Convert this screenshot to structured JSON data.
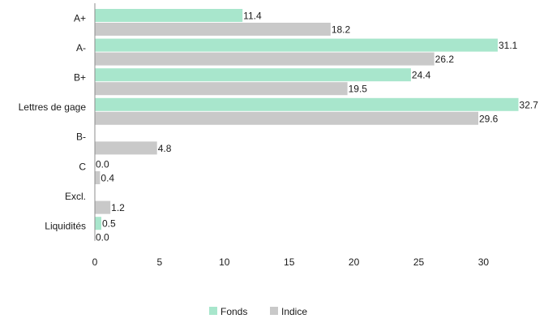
{
  "chart_data": {
    "type": "bar",
    "orientation": "horizontal",
    "categories": [
      "A+",
      "A-",
      "B+",
      "Lettres de gage",
      "B-",
      "C",
      "Excl.",
      "Liquidités"
    ],
    "series": [
      {
        "name": "Fonds",
        "color": "#a8e6cc",
        "values": [
          11.4,
          31.1,
          24.4,
          32.7,
          null,
          0.0,
          null,
          0.5
        ]
      },
      {
        "name": "Indice",
        "color": "#c9c9c9",
        "values": [
          18.2,
          26.2,
          19.5,
          29.6,
          4.8,
          0.4,
          1.2,
          0.0
        ]
      }
    ],
    "data_labels": {
      "Fonds": [
        "11.4",
        "31.1",
        "24.4",
        "32.7",
        "",
        "0.0",
        "",
        "0.5"
      ],
      "Indice": [
        "18.2",
        "26.2",
        "19.5",
        "29.6",
        "4.8",
        "0.4",
        "1.2",
        "0.0"
      ]
    },
    "xlim": [
      0,
      35
    ],
    "xticks": [
      0,
      5,
      10,
      15,
      20,
      25,
      30
    ],
    "xtick_labels": [
      "0",
      "5",
      "10",
      "15",
      "20",
      "25",
      "30"
    ],
    "legend": [
      "Fonds",
      "Indice"
    ],
    "legend_position": "bottom-center",
    "grid": false
  }
}
